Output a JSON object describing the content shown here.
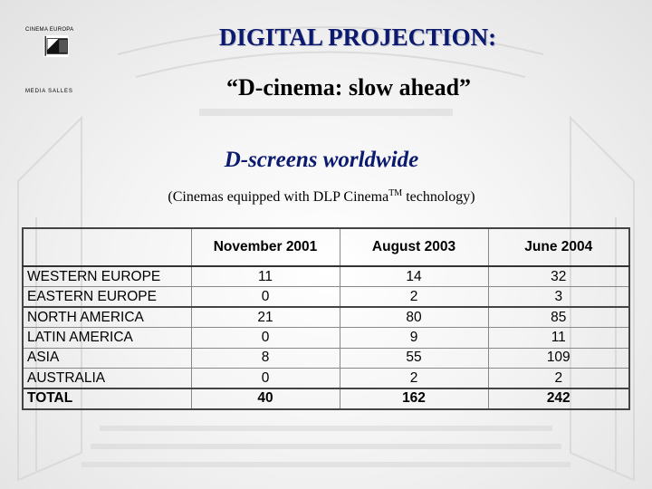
{
  "logo": {
    "top_text": "CINEMA EUROPA",
    "bottom_text": "MEDIA SALLES"
  },
  "header": {
    "title": "DIGITAL PROJECTION:",
    "subtitle": "“D-cinema: slow ahead”"
  },
  "section": {
    "title": "D-screens worldwide",
    "caption_before": "(Cinemas equipped with DLP Cinema",
    "caption_sup": "TM",
    "caption_after": " technology)"
  },
  "table": {
    "columns": [
      "",
      "November 2001",
      "August 2003",
      "June 2004"
    ],
    "rows": [
      {
        "region": "WESTERN EUROPE",
        "nov2001": "11",
        "aug2003": "14",
        "jun2004": "32"
      },
      {
        "region": "EASTERN EUROPE",
        "nov2001": "0",
        "aug2003": "2",
        "jun2004": "3"
      },
      {
        "region": "NORTH AMERICA",
        "nov2001": "21",
        "aug2003": "80",
        "jun2004": "85"
      },
      {
        "region": "LATIN AMERICA",
        "nov2001": "0",
        "aug2003": "9",
        "jun2004": "11"
      },
      {
        "region": "ASIA",
        "nov2001": "8",
        "aug2003": "55",
        "jun2004": "109"
      },
      {
        "region": "AUSTRALIA",
        "nov2001": "0",
        "aug2003": "2",
        "jun2004": "2"
      },
      {
        "region": "TOTAL",
        "nov2001": "40",
        "aug2003": "162",
        "jun2004": "242"
      }
    ]
  }
}
